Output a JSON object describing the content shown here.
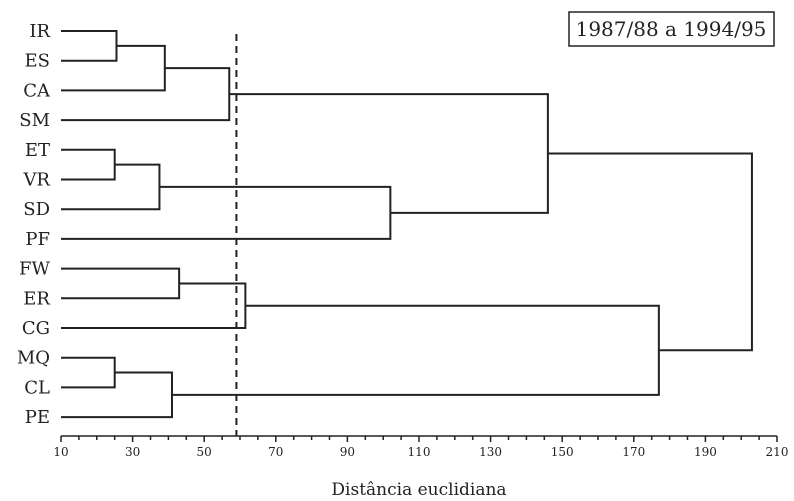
{
  "chart_data": {
    "type": "dendrogram",
    "title": "1987/88 a 1994/95",
    "xlabel": "Distância euclidiana",
    "xlim": [
      10,
      210
    ],
    "x_ticks": [
      10,
      30,
      50,
      70,
      90,
      110,
      130,
      150,
      170,
      190,
      210
    ],
    "leaves": [
      "IR",
      "ES",
      "CA",
      "SM",
      "ET",
      "VR",
      "SD",
      "PF",
      "FW",
      "ER",
      "CG",
      "MQ",
      "CL",
      "PE"
    ],
    "cut_height": 59,
    "merges": [
      {
        "left": "IR",
        "right": "ES",
        "height": 25.5
      },
      {
        "left": "IR+ES",
        "right": "CA",
        "height": 39
      },
      {
        "left": "IR+ES+CA",
        "right": "SM",
        "height": 57
      },
      {
        "left": "ET",
        "right": "VR",
        "height": 25
      },
      {
        "left": "ET+VR",
        "right": "SD",
        "height": 37.5
      },
      {
        "left": "ET+VR+SD",
        "right": "PF",
        "height": 102
      },
      {
        "left": "IR..SM",
        "right": "ET..PF",
        "height": 146
      },
      {
        "left": "FW",
        "right": "ER",
        "height": 43
      },
      {
        "left": "FW+ER",
        "right": "CG",
        "height": 61.5
      },
      {
        "left": "MQ",
        "right": "CL",
        "height": 25
      },
      {
        "left": "MQ+CL",
        "right": "PE",
        "height": 41
      },
      {
        "left": "FW..CG",
        "right": "MQ..PE",
        "height": 177
      },
      {
        "left": "IR..PF",
        "right": "FW..PE",
        "height": 203
      }
    ]
  }
}
